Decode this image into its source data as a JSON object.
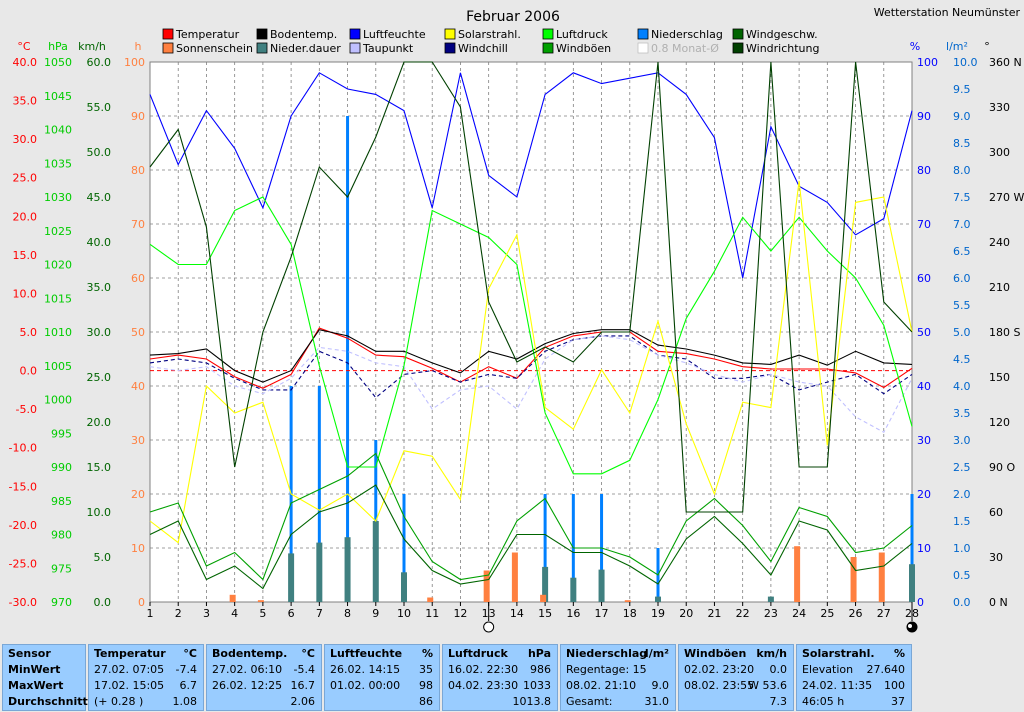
{
  "chart_data": {
    "type": "line",
    "title": "Februar 2006",
    "station": "Wetterstation Neumünster",
    "x": [
      1,
      2,
      3,
      4,
      5,
      6,
      7,
      8,
      9,
      10,
      11,
      12,
      13,
      14,
      15,
      16,
      17,
      18,
      19,
      20,
      21,
      22,
      23,
      24,
      25,
      26,
      27,
      28
    ],
    "xlim": [
      1,
      28
    ],
    "axes": {
      "temp": {
        "unit": "°C",
        "range": [
          -30,
          40
        ],
        "ticks": [
          "40.0",
          "35.0",
          "30.0",
          "25.0",
          "20.0",
          "15.0",
          "10.0",
          "5.0",
          "0.0",
          "-5.0",
          "-10.0",
          "-15.0",
          "-20.0",
          "-25.0",
          "-30.0"
        ],
        "color": "#ff0000"
      },
      "pressure": {
        "unit": "hPa",
        "range": [
          970,
          1050
        ],
        "ticks": [
          "1050",
          "1045",
          "1040",
          "1035",
          "1030",
          "1025",
          "1020",
          "1015",
          "1010",
          "1005",
          "1000",
          "995",
          "990",
          "985",
          "980",
          "975",
          "970"
        ],
        "color": "#00cc00"
      },
      "wind": {
        "unit": "km/h",
        "range": [
          0,
          60
        ],
        "ticks": [
          "60.0",
          "55.0",
          "50.0",
          "45.0",
          "40.0",
          "35.0",
          "30.0",
          "25.0",
          "20.0",
          "15.0",
          "10.0",
          "5.0",
          "0.0"
        ],
        "color": "#006400"
      },
      "sun": {
        "unit": "h",
        "range": [
          0,
          100
        ],
        "ticks": [
          "100",
          "90",
          "80",
          "70",
          "60",
          "50",
          "40",
          "30",
          "20",
          "10",
          "0"
        ],
        "color": "#ff8040"
      },
      "humidity": {
        "unit": "%",
        "range": [
          0,
          100
        ],
        "ticks": [
          "100",
          "90",
          "80",
          "70",
          "60",
          "50",
          "40",
          "30",
          "20",
          "10",
          "0"
        ],
        "color": "#0000ff"
      },
      "rain": {
        "unit": "l/m²",
        "range": [
          0,
          10
        ],
        "ticks": [
          "10.0",
          "9.5",
          "9.0",
          "8.5",
          "8.0",
          "7.5",
          "7.0",
          "6.5",
          "6.0",
          "5.5",
          "5.0",
          "4.5",
          "4.0",
          "3.5",
          "3.0",
          "2.5",
          "2.0",
          "1.5",
          "1.0",
          "0.5",
          "0.0"
        ],
        "color": "#0066cc"
      },
      "direction": {
        "unit": "°",
        "range": [
          0,
          360
        ],
        "ticks": [
          "360 N",
          "330",
          "300",
          "270 W",
          "240",
          "210",
          "180 S",
          "150",
          "120",
          "90 O",
          "60",
          "30",
          "0 N"
        ],
        "color": "#000000"
      }
    },
    "legend": [
      {
        "name": "Temperatur",
        "color": "#ff0000"
      },
      {
        "name": "Sonnenschein",
        "color": "#ff8040"
      },
      {
        "name": "Bodentemp.",
        "color": "#000000"
      },
      {
        "name": "Nieder.dauer",
        "color": "#408080"
      },
      {
        "name": "Luftfeuchte",
        "color": "#0000ff"
      },
      {
        "name": "Taupunkt",
        "color": "#c0c0ff"
      },
      {
        "name": "Solarstrahl.",
        "color": "#ffff00"
      },
      {
        "name": "Windchill",
        "color": "#000080"
      },
      {
        "name": "Luftdruck",
        "color": "#00ff00"
      },
      {
        "name": "Windböen",
        "color": "#00a000"
      },
      {
        "name": "Niederschlag",
        "color": "#0080ff"
      },
      {
        "name": "0.8 Monat-Ø",
        "color": "#d8d8d8"
      },
      {
        "name": "Windgeschw.",
        "color": "#006400"
      },
      {
        "name": "Windrichtung",
        "color": "#004000"
      }
    ],
    "series": [
      {
        "name": "Temperatur",
        "axis": "temp",
        "color": "#ff0000",
        "values": [
          1.5,
          2.0,
          1.5,
          -0.8,
          -2.3,
          -0.5,
          5.5,
          4.2,
          2.0,
          1.8,
          0.3,
          -1.5,
          0.5,
          -1.0,
          3.0,
          4.5,
          5.0,
          5.0,
          2.5,
          2.2,
          1.5,
          0.5,
          0.2,
          0.2,
          0.2,
          -0.3,
          -2.2,
          0.3
        ]
      },
      {
        "name": "Bodentemp.",
        "axis": "temp",
        "color": "#000000",
        "values": [
          2.0,
          2.2,
          2.8,
          0.0,
          -1.5,
          0.0,
          5.3,
          4.5,
          2.5,
          2.5,
          1.0,
          -0.3,
          2.5,
          1.5,
          3.5,
          4.8,
          5.3,
          5.3,
          3.3,
          2.8,
          2.0,
          1.0,
          0.8,
          2.0,
          0.7,
          2.5,
          1.0,
          0.8
        ]
      },
      {
        "name": "Windchill",
        "axis": "temp",
        "color": "#000080",
        "dashed": true,
        "values": [
          1.0,
          1.5,
          1.0,
          -1.0,
          -2.5,
          -2.5,
          2.5,
          1.0,
          -3.5,
          -0.5,
          0.0,
          -1.5,
          -0.5,
          -1.0,
          2.5,
          4.0,
          4.5,
          4.5,
          2.0,
          1.5,
          -1.0,
          -1.0,
          -0.5,
          -2.5,
          -1.5,
          -0.5,
          -3.0,
          -0.5
        ]
      },
      {
        "name": "Taupunkt",
        "axis": "temp",
        "color": "#c0c0ff",
        "dashed": true,
        "values": [
          0.5,
          0.0,
          0.5,
          -2.0,
          -3.0,
          -1.0,
          3.0,
          2.5,
          1.0,
          0.5,
          -5.0,
          -2.5,
          -2.0,
          -5.0,
          1.5,
          4.0,
          4.5,
          4.0,
          2.0,
          1.0,
          -0.5,
          -1.5,
          -0.5,
          -1.5,
          -2.0,
          -6.0,
          -8.0,
          -1.0
        ]
      },
      {
        "name": "Luftfeuchte",
        "axis": "humidity",
        "color": "#0000ff",
        "values": [
          94,
          81,
          91,
          84,
          73,
          90,
          98,
          95,
          94,
          91,
          73,
          98,
          79,
          75,
          94,
          98,
          96,
          97,
          98,
          94,
          86,
          60,
          88,
          77,
          74,
          68,
          71,
          91
        ]
      },
      {
        "name": "Luftdruck",
        "axis": "pressure",
        "color": "#00ff00",
        "values": [
          1023,
          1020,
          1020,
          1028,
          1030,
          1023,
          1005,
          990,
          990,
          1005,
          1028,
          1026,
          1024,
          1020,
          998,
          989,
          989,
          991,
          1000,
          1012,
          1019,
          1027,
          1022,
          1027,
          1022,
          1018,
          1011,
          996
        ]
      },
      {
        "name": "Solarstrahl.",
        "axis": "sun",
        "color": "#ffff00",
        "values": [
          15,
          11,
          40,
          35,
          37,
          20,
          17,
          20,
          15,
          28,
          27,
          19,
          58,
          68,
          36,
          32,
          43,
          35,
          52,
          33,
          20,
          37,
          36,
          78,
          29,
          74,
          75,
          50
        ]
      },
      {
        "name": "Windgeschw.",
        "axis": "wind",
        "color": "#006400",
        "values": [
          7.5,
          9.0,
          2.5,
          4.0,
          1.5,
          7.5,
          10.0,
          11.0,
          13.0,
          7.0,
          3.5,
          2.0,
          2.5,
          7.5,
          7.5,
          5.5,
          5.5,
          4.0,
          2.0,
          7.0,
          9.5,
          6.5,
          3.0,
          9.0,
          8.0,
          3.5,
          4.0,
          6.5
        ]
      },
      {
        "name": "Windböen",
        "axis": "wind",
        "color": "#00a000",
        "values": [
          10.0,
          11.0,
          4.0,
          5.5,
          2.5,
          11.0,
          12.5,
          14.0,
          16.5,
          9.5,
          4.5,
          2.5,
          3.0,
          9.0,
          11.5,
          6.0,
          6.0,
          5.0,
          3.0,
          9.0,
          11.5,
          8.5,
          4.5,
          10.5,
          9.5,
          5.5,
          6.0,
          8.5
        ]
      },
      {
        "name": "Windrichtung",
        "axis": "direction",
        "color": "#004000",
        "values": [
          290,
          315,
          250,
          90,
          180,
          230,
          290,
          270,
          310,
          360,
          360,
          330,
          200,
          160,
          170,
          160,
          180,
          180,
          360,
          60,
          60,
          60,
          360,
          90,
          90,
          360,
          200,
          180
        ]
      }
    ],
    "bars": [
      {
        "name": "Niederschlag",
        "axis": "rain",
        "color": "#0080ff",
        "values": [
          0,
          0,
          0,
          0,
          0,
          4.0,
          4.0,
          9.0,
          3.0,
          2.0,
          0,
          0,
          0,
          0,
          2.0,
          2.0,
          2.0,
          0,
          1.0,
          0,
          0,
          0,
          0,
          0,
          0,
          0,
          0,
          2.0
        ]
      },
      {
        "name": "Nieder.dauer",
        "axis": "rain",
        "color": "#408080",
        "values": [
          0,
          0,
          0,
          0,
          0,
          0.9,
          1.1,
          1.2,
          1.5,
          0.55,
          0,
          0,
          0,
          0,
          0.65,
          0.45,
          0.6,
          0,
          0.1,
          0,
          0,
          0,
          0.1,
          0,
          0,
          0,
          0,
          0.7
        ]
      },
      {
        "name": "Sonnenschein",
        "axis": "wind",
        "color": "#ff8040",
        "values": [
          0,
          0,
          0,
          0.8,
          0.2,
          0,
          0,
          0,
          0,
          0,
          0.5,
          0,
          3.5,
          5.5,
          0.8,
          0,
          0,
          0.2,
          0,
          0,
          0,
          0,
          0,
          6.2,
          0,
          5.0,
          5.5,
          0
        ]
      }
    ],
    "reference_line": {
      "axis": "temp",
      "value": 0.0,
      "color": "#ff0000"
    },
    "moon_markers": [
      {
        "day": 13,
        "phase": "full"
      },
      {
        "day": 28,
        "phase": "new"
      }
    ]
  },
  "table": [
    {
      "header": "Sensor",
      "header_unit": "",
      "rows": [
        [
          "MinWert"
        ],
        [
          "MaxWert"
        ],
        [
          "Durchschnitt"
        ]
      ]
    },
    {
      "header": "Temperatur",
      "header_unit": "°C",
      "rows": [
        [
          "27.02.  07:05",
          "-7.4"
        ],
        [
          "17.02.  15:05",
          "6.7"
        ],
        [
          "(+ 0.28 )",
          "1.08"
        ]
      ]
    },
    {
      "header": "Bodentemp.",
      "header_unit": "°C",
      "rows": [
        [
          "27.02.  06:10",
          "-5.4"
        ],
        [
          "26.02.  12:25",
          "16.7"
        ],
        [
          "",
          "2.06"
        ]
      ]
    },
    {
      "header": "Luftfeuchte",
      "header_unit": "%",
      "rows": [
        [
          "26.02.  14:15",
          "35"
        ],
        [
          "01.02.  00:00",
          "98"
        ],
        [
          "",
          "86"
        ]
      ]
    },
    {
      "header": "Luftdruck",
      "header_unit": "hPa",
      "rows": [
        [
          "16.02.  22:30",
          "986"
        ],
        [
          "04.02.  23:30",
          "1033"
        ],
        [
          "",
          "1013.8"
        ]
      ]
    },
    {
      "header": "Niederschlag",
      "header_unit": "l/m²",
      "rows": [
        [
          "Regentage: 15",
          ""
        ],
        [
          "08.02.  21:10",
          "9.0"
        ],
        [
          "Gesamt:",
          "31.0"
        ]
      ]
    },
    {
      "header": "Windböen",
      "header_unit": "km/h",
      "rows": [
        [
          "02.02.  23:20",
          "0.0"
        ],
        [
          "08.02.  23:55",
          "W 53.6"
        ],
        [
          "",
          "7.3"
        ]
      ]
    },
    {
      "header": "Solarstrahl.",
      "header_unit": "%",
      "rows": [
        [
          "Elevation",
          "27.640"
        ],
        [
          "24.02.  11:35",
          "100"
        ],
        [
          "46:05 h",
          "37"
        ]
      ]
    }
  ]
}
